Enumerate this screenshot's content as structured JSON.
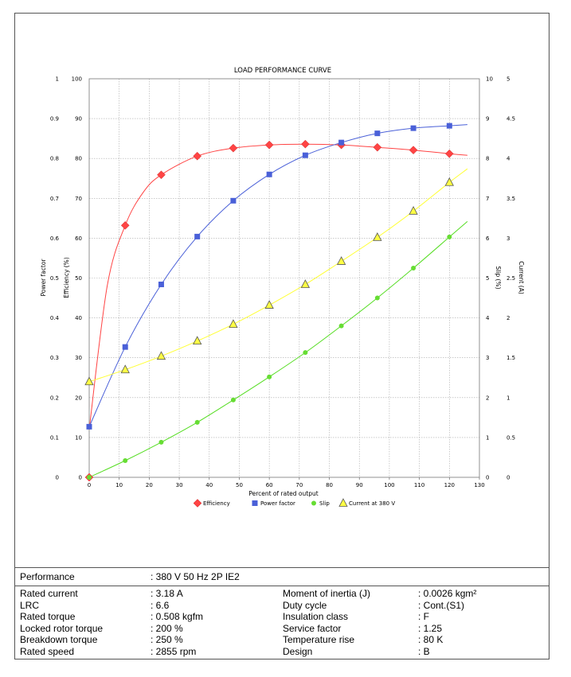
{
  "chart_data": {
    "type": "line",
    "title": "LOAD PERFORMANCE CURVE",
    "xlabel": "Percent of rated output",
    "xlim": [
      0,
      130
    ],
    "x_ticks": [
      "0",
      "10",
      "20",
      "30",
      "40",
      "50",
      "60",
      "70",
      "80",
      "90",
      "100",
      "110",
      "120",
      "130"
    ],
    "axes": {
      "power_factor": {
        "label": "Power factor",
        "lim": [
          0,
          1
        ],
        "ticks": [
          "0",
          "0.1",
          "0.2",
          "0.3",
          "0.4",
          "0.5",
          "0.6",
          "0.7",
          "0.8",
          "0.9",
          "1"
        ]
      },
      "efficiency": {
        "label": "Efficiency (%)",
        "lim": [
          0,
          100
        ],
        "ticks": [
          "0",
          "10",
          "20",
          "30",
          "40",
          "50",
          "60",
          "70",
          "80",
          "90",
          "100"
        ]
      },
      "slip": {
        "label": "Slip (%)",
        "lim": [
          0,
          10
        ],
        "ticks": [
          "0",
          "1",
          "2",
          "3",
          "4",
          "5",
          "6",
          "7",
          "8",
          "9",
          "10"
        ]
      },
      "current": {
        "label": "Current (A)",
        "lim": [
          0,
          5
        ],
        "ticks": [
          "0",
          "0.5",
          "1",
          "1.5",
          "2",
          "2.5",
          "3",
          "3.5",
          "4",
          "4.5",
          "5"
        ]
      }
    },
    "grid": true,
    "legend_position": "bottom",
    "series": [
      {
        "name": "Efficiency",
        "axis": "efficiency",
        "color": "#ff4444",
        "marker": "diamond",
        "x": [
          0,
          12,
          24,
          36,
          48,
          60,
          72,
          84,
          96,
          108,
          120
        ],
        "y": [
          0,
          63.2,
          75.9,
          80.6,
          82.6,
          83.4,
          83.6,
          83.4,
          82.8,
          82.1,
          81.2
        ]
      },
      {
        "name": "Power factor",
        "axis": "power_factor",
        "color": "#4a60d8",
        "marker": "square",
        "x": [
          0,
          12,
          24,
          36,
          48,
          60,
          72,
          84,
          96,
          108,
          120
        ],
        "y": [
          0.127,
          0.327,
          0.484,
          0.604,
          0.694,
          0.76,
          0.808,
          0.84,
          0.863,
          0.876,
          0.882
        ]
      },
      {
        "name": "Slip",
        "axis": "slip",
        "color": "#66dd33",
        "marker": "circle",
        "x": [
          0,
          12,
          24,
          36,
          48,
          60,
          72,
          84,
          96,
          108,
          120
        ],
        "y": [
          0,
          0.42,
          0.88,
          1.38,
          1.94,
          2.52,
          3.13,
          3.8,
          4.5,
          5.25,
          6.03
        ]
      },
      {
        "name": "Current at 380 V",
        "axis": "current",
        "color": "#ffff44",
        "marker": "triangle",
        "x": [
          0,
          12,
          24,
          36,
          48,
          60,
          72,
          84,
          96,
          108,
          120
        ],
        "y": [
          1.2,
          1.35,
          1.52,
          1.71,
          1.92,
          2.16,
          2.42,
          2.71,
          3.01,
          3.34,
          3.7
        ]
      }
    ],
    "fits": {
      "efficiency": {
        "x": [
          0,
          6,
          12,
          18,
          24,
          36,
          48,
          60,
          72,
          84,
          96,
          108,
          120,
          126
        ],
        "y": [
          12,
          48,
          63.2,
          71.5,
          75.9,
          80.6,
          82.6,
          83.4,
          83.6,
          83.4,
          82.8,
          82.1,
          81.2,
          80.8
        ]
      },
      "power_factor": {
        "x": [
          0,
          12,
          24,
          36,
          48,
          60,
          72,
          84,
          96,
          108,
          120,
          126
        ],
        "y": [
          0.127,
          0.327,
          0.484,
          0.604,
          0.694,
          0.76,
          0.808,
          0.84,
          0.863,
          0.876,
          0.882,
          0.885
        ]
      },
      "slip": {
        "x": [
          0,
          12,
          24,
          36,
          48,
          60,
          72,
          84,
          96,
          108,
          120,
          126
        ],
        "y": [
          0,
          0.42,
          0.88,
          1.38,
          1.94,
          2.52,
          3.13,
          3.8,
          4.5,
          5.25,
          6.03,
          6.42
        ]
      },
      "current": {
        "x": [
          0,
          12,
          24,
          36,
          48,
          60,
          72,
          84,
          96,
          108,
          120,
          126
        ],
        "y": [
          1.2,
          1.35,
          1.52,
          1.71,
          1.92,
          2.16,
          2.42,
          2.71,
          3.01,
          3.34,
          3.7,
          3.87
        ]
      }
    }
  },
  "specs": {
    "performance": {
      "label": "Performance",
      "value": ": 380 V 50 Hz 2P IE2"
    },
    "left": [
      {
        "label": "Rated current",
        "value": ": 3.18 A"
      },
      {
        "label": "LRC",
        "value": ": 6.6"
      },
      {
        "label": "Rated torque",
        "value": ": 0.508 kgfm"
      },
      {
        "label": "Locked rotor torque",
        "value": ": 200 %"
      },
      {
        "label": "Breakdown torque",
        "value": ": 250 %"
      },
      {
        "label": "Rated speed",
        "value": ": 2855 rpm"
      }
    ],
    "right": [
      {
        "label": "Moment of inertia (J)",
        "value": ": 0.0026 kgm²"
      },
      {
        "label": "Duty cycle",
        "value": ": Cont.(S1)"
      },
      {
        "label": "Insulation class",
        "value": ": F"
      },
      {
        "label": "Service factor",
        "value": ": 1.25"
      },
      {
        "label": "Temperature rise",
        "value": ": 80 K"
      },
      {
        "label": "Design",
        "value": ": B"
      }
    ]
  }
}
